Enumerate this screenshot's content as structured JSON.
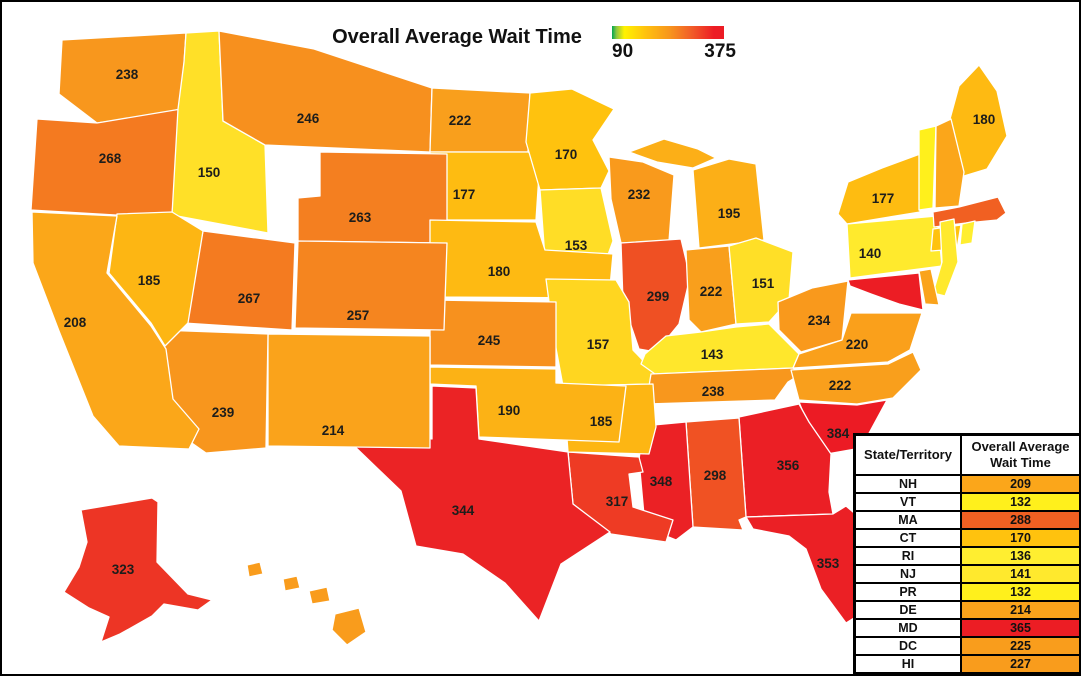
{
  "chart_data": {
    "type": "heatmap",
    "subtype": "us-state-choropleth-map",
    "title": "Overall Average Wait Time",
    "legend_position": "top-right",
    "colorbar": {
      "min": 90,
      "max": 375,
      "min_label": "90",
      "max_label": "375",
      "gradient": [
        {
          "p": 0,
          "c": "#00A651"
        },
        {
          "p": 4,
          "c": "#8DC63F"
        },
        {
          "p": 11,
          "c": "#FFF200"
        },
        {
          "p": 30,
          "c": "#FFC20E"
        },
        {
          "p": 52,
          "c": "#F7941D"
        },
        {
          "p": 72,
          "c": "#F15A29"
        },
        {
          "p": 91,
          "c": "#ED1C24"
        },
        {
          "p": 100,
          "c": "#EC1C24"
        }
      ]
    },
    "color_stops": [
      [
        0.0,
        "#39B54A"
      ],
      [
        0.07,
        "#A9CE39"
      ],
      [
        0.13,
        "#FFF200"
      ],
      [
        0.16,
        "#FFEE30"
      ],
      [
        0.22,
        "#FFDD26"
      ],
      [
        0.28,
        "#FFC20E"
      ],
      [
        0.36,
        "#FCB016"
      ],
      [
        0.44,
        "#FAA21B"
      ],
      [
        0.53,
        "#F8951D"
      ],
      [
        0.61,
        "#F47E20"
      ],
      [
        0.66,
        "#F36F21"
      ],
      [
        0.71,
        "#F05A23"
      ],
      [
        0.75,
        "#EF4923"
      ],
      [
        0.82,
        "#ED3425"
      ],
      [
        0.9,
        "#EB2125"
      ],
      [
        1.0,
        "#EC1B24"
      ]
    ],
    "map_border_color": "#ffffff",
    "label_color": "#1d1d1b",
    "states": [
      {
        "id": "WA",
        "value": 238,
        "show_label": true
      },
      {
        "id": "OR",
        "value": 268,
        "show_label": true
      },
      {
        "id": "ID",
        "value": 150,
        "show_label": true
      },
      {
        "id": "MT",
        "value": 246,
        "show_label": true
      },
      {
        "id": "ND",
        "value": 222,
        "show_label": true
      },
      {
        "id": "SD",
        "value": 177,
        "show_label": true
      },
      {
        "id": "WY",
        "value": 263,
        "show_label": true
      },
      {
        "id": "MN",
        "value": 170,
        "show_label": true
      },
      {
        "id": "WI",
        "value": 232,
        "show_label": true
      },
      {
        "id": "MI",
        "value": 195,
        "show_label": true
      },
      {
        "id": "IA",
        "value": 153,
        "show_label": true
      },
      {
        "id": "NE",
        "value": 180,
        "show_label": true
      },
      {
        "id": "IL",
        "value": 299,
        "show_label": true
      },
      {
        "id": "IN",
        "value": 222,
        "show_label": true
      },
      {
        "id": "OH",
        "value": 151,
        "show_label": true
      },
      {
        "id": "MO",
        "value": 157,
        "show_label": true
      },
      {
        "id": "KS",
        "value": 245,
        "show_label": true
      },
      {
        "id": "KY",
        "value": 143,
        "show_label": true
      },
      {
        "id": "TN",
        "value": 238,
        "show_label": true
      },
      {
        "id": "WV",
        "value": 234,
        "show_label": true
      },
      {
        "id": "VA",
        "value": 220,
        "show_label": true
      },
      {
        "id": "NC",
        "value": 222,
        "show_label": true
      },
      {
        "id": "SC",
        "value": 384,
        "show_label": true
      },
      {
        "id": "GA",
        "value": 356,
        "show_label": true
      },
      {
        "id": "AL",
        "value": 298,
        "show_label": true
      },
      {
        "id": "MS",
        "value": 348,
        "show_label": true
      },
      {
        "id": "FL",
        "value": 353,
        "show_label": true
      },
      {
        "id": "LA",
        "value": 317,
        "show_label": true
      },
      {
        "id": "AR",
        "value": 185,
        "show_label": true
      },
      {
        "id": "OK",
        "value": 190,
        "show_label": true
      },
      {
        "id": "TX",
        "value": 344,
        "show_label": true
      },
      {
        "id": "NM",
        "value": 214,
        "show_label": true
      },
      {
        "id": "AZ",
        "value": 239,
        "show_label": true
      },
      {
        "id": "CO",
        "value": 257,
        "show_label": true
      },
      {
        "id": "UT",
        "value": 267,
        "show_label": true
      },
      {
        "id": "NV",
        "value": 185,
        "show_label": true
      },
      {
        "id": "CA",
        "value": 208,
        "show_label": true
      },
      {
        "id": "NY",
        "value": 177,
        "show_label": true
      },
      {
        "id": "PA",
        "value": 140,
        "show_label": true
      },
      {
        "id": "ME",
        "value": 180,
        "show_label": true
      },
      {
        "id": "AK",
        "value": 323,
        "show_label": true
      },
      {
        "id": "VT",
        "value": 132,
        "show_label": false
      },
      {
        "id": "NH",
        "value": 209,
        "show_label": false
      },
      {
        "id": "MA",
        "value": 288,
        "show_label": false
      },
      {
        "id": "CT",
        "value": 170,
        "show_label": false
      },
      {
        "id": "RI",
        "value": 136,
        "show_label": false
      },
      {
        "id": "NJ",
        "value": 141,
        "show_label": false
      },
      {
        "id": "DE",
        "value": 214,
        "show_label": false
      },
      {
        "id": "MD",
        "value": 365,
        "show_label": false
      },
      {
        "id": "HI",
        "value": 227,
        "show_label": false
      }
    ],
    "table": {
      "headers": [
        "State/Territory",
        "Overall Average Wait Time"
      ],
      "rows": [
        {
          "state": "NH",
          "value": 209
        },
        {
          "state": "VT",
          "value": 132
        },
        {
          "state": "MA",
          "value": 288
        },
        {
          "state": "CT",
          "value": 170
        },
        {
          "state": "RI",
          "value": 136
        },
        {
          "state": "NJ",
          "value": 141
        },
        {
          "state": "PR",
          "value": 132
        },
        {
          "state": "DE",
          "value": 214
        },
        {
          "state": "MD",
          "value": 365
        },
        {
          "state": "DC",
          "value": 225
        },
        {
          "state": "HI",
          "value": 227
        }
      ]
    }
  }
}
